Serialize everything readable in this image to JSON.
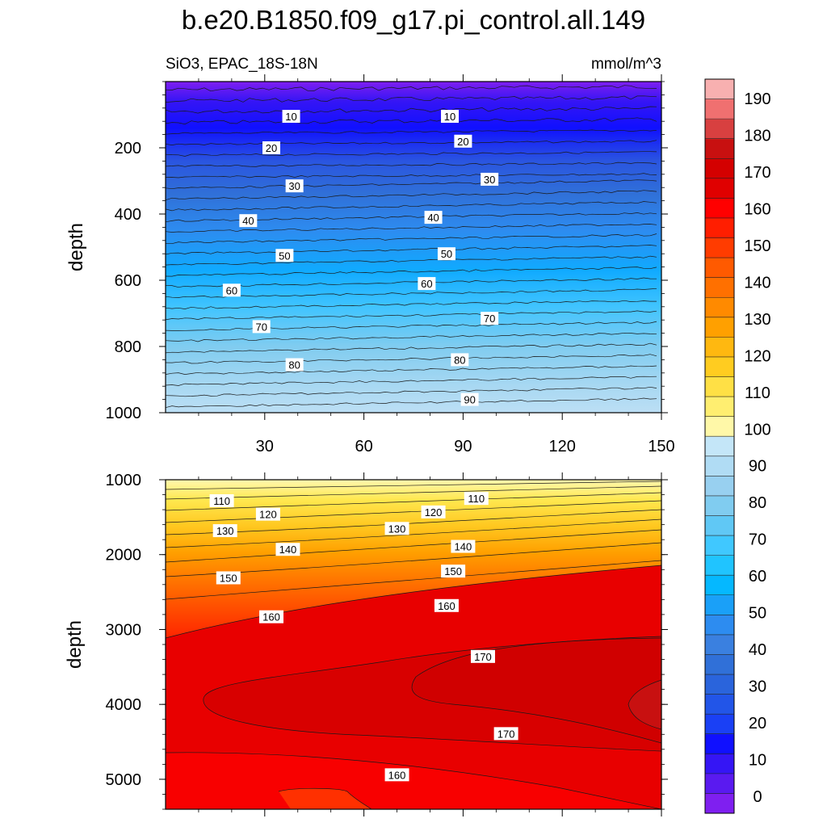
{
  "title": "b.e20.B1850.f09_g17.pi_control.all.149",
  "left_subtitle": "SiO3, EPAC_18S-18N",
  "right_subtitle": "mmol/m^3",
  "colormap": [
    "#7f1ff0",
    "#5a1af0",
    "#3515f5",
    "#1010ff",
    "#1a40f5",
    "#2255e8",
    "#2a64dc",
    "#3070d8",
    "#3a80e0",
    "#2d8cf0",
    "#1aa0f8",
    "#05b8ff",
    "#20c4ff",
    "#40c8ff",
    "#60c8f5",
    "#80ccf0",
    "#98d0f0",
    "#b0dcf4",
    "#c4e6f8",
    "#fff8a8",
    "#ffee70",
    "#ffe045",
    "#ffcc20",
    "#ffb810",
    "#ffa000",
    "#ff8a00",
    "#ff7000",
    "#ff5a00",
    "#ff3c00",
    "#ff1e00",
    "#ff0000",
    "#e00000",
    "#d40000",
    "#c81010",
    "#d84040",
    "#f07070",
    "#f8b0b0"
  ],
  "chart_data": [
    {
      "type": "contour",
      "panel": "upper",
      "xlabel": "",
      "ylabel": "depth",
      "xlim": [
        0,
        150
      ],
      "ylim": [
        1000,
        0
      ],
      "xticks": [
        "30",
        "60",
        "90",
        "120",
        "150"
      ],
      "yticks": [
        "200",
        "400",
        "600",
        "800",
        "1000"
      ],
      "levels": [
        10,
        20,
        30,
        40,
        50,
        60,
        70,
        80,
        90
      ],
      "contour_labels": [
        {
          "text": "10",
          "x": 38,
          "y": 105
        },
        {
          "text": "10",
          "x": 86,
          "y": 105
        },
        {
          "text": "20",
          "x": 32,
          "y": 200
        },
        {
          "text": "20",
          "x": 90,
          "y": 180
        },
        {
          "text": "30",
          "x": 39,
          "y": 315
        },
        {
          "text": "30",
          "x": 98,
          "y": 295
        },
        {
          "text": "40",
          "x": 25,
          "y": 420
        },
        {
          "text": "40",
          "x": 81,
          "y": 410
        },
        {
          "text": "50",
          "x": 36,
          "y": 525
        },
        {
          "text": "50",
          "x": 85,
          "y": 520
        },
        {
          "text": "60",
          "x": 20,
          "y": 630
        },
        {
          "text": "60",
          "x": 79,
          "y": 610
        },
        {
          "text": "70",
          "x": 29,
          "y": 740
        },
        {
          "text": "70",
          "x": 98,
          "y": 715
        },
        {
          "text": "80",
          "x": 39,
          "y": 855
        },
        {
          "text": "80",
          "x": 89,
          "y": 840
        },
        {
          "text": "90",
          "x": 92,
          "y": 960
        }
      ]
    },
    {
      "type": "contour",
      "panel": "lower",
      "xlabel": "",
      "ylabel": "depth",
      "xlim": [
        0,
        150
      ],
      "ylim": [
        5400,
        1000
      ],
      "yticks": [
        "1000",
        "2000",
        "3000",
        "4000",
        "5000"
      ],
      "levels": [
        110,
        120,
        130,
        140,
        150,
        160,
        170
      ],
      "contour_labels": [
        {
          "text": "110",
          "x": 17,
          "y": 1280
        },
        {
          "text": "110",
          "x": 94,
          "y": 1250
        },
        {
          "text": "120",
          "x": 31,
          "y": 1460
        },
        {
          "text": "120",
          "x": 81,
          "y": 1430
        },
        {
          "text": "130",
          "x": 18,
          "y": 1680
        },
        {
          "text": "130",
          "x": 70,
          "y": 1650
        },
        {
          "text": "140",
          "x": 37,
          "y": 1930
        },
        {
          "text": "140",
          "x": 90,
          "y": 1890
        },
        {
          "text": "150",
          "x": 19,
          "y": 2310
        },
        {
          "text": "150",
          "x": 87,
          "y": 2220
        },
        {
          "text": "160",
          "x": 32,
          "y": 2830
        },
        {
          "text": "160",
          "x": 85,
          "y": 2680
        },
        {
          "text": "170",
          "x": 96,
          "y": 3360
        },
        {
          "text": "170",
          "x": 103,
          "y": 4390
        },
        {
          "text": "160",
          "x": 70,
          "y": 4940
        }
      ]
    }
  ],
  "colorbar": {
    "labels": [
      "0",
      "10",
      "20",
      "30",
      "40",
      "50",
      "60",
      "70",
      "80",
      "90",
      "100",
      "110",
      "120",
      "130",
      "140",
      "150",
      "160",
      "170",
      "180",
      "190"
    ],
    "values": [
      0,
      10,
      20,
      30,
      40,
      50,
      60,
      70,
      80,
      90,
      100,
      110,
      120,
      130,
      140,
      150,
      160,
      170,
      180,
      190
    ]
  }
}
